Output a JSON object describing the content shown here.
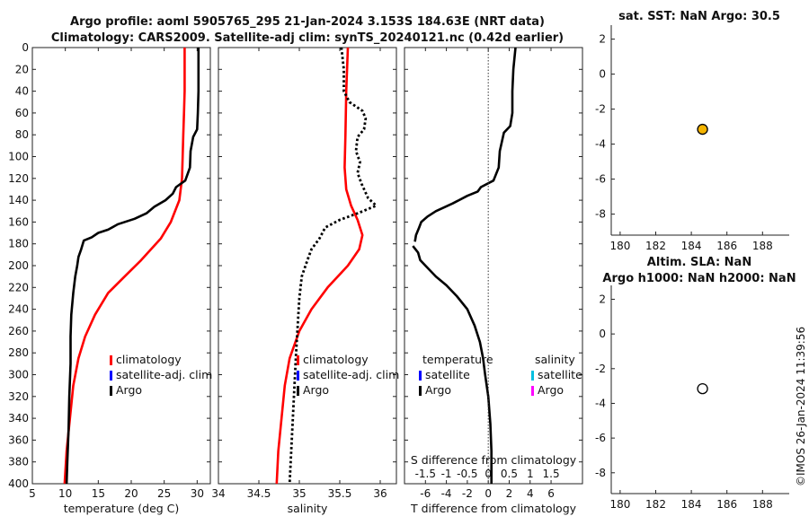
{
  "title_line1": "Argo profile: aoml 5905765_295 21-Jan-2024 3.153S 184.63E (NRT data)",
  "title_line2": "Climatology: CARS2009. Satellite-adj clim: synTS_20240121.nc (0.42d earlier)",
  "watermark": "©IMOS 26-Jan-2024 11:39:56",
  "chart_data": [
    {
      "id": "temperature",
      "type": "line",
      "xlabel": "temperature (deg C)",
      "xlim": [
        5,
        32
      ],
      "xticks": [
        5,
        10,
        15,
        20,
        25,
        30
      ],
      "ylim": [
        0,
        400
      ],
      "yticks": [
        0,
        20,
        40,
        60,
        80,
        100,
        120,
        140,
        160,
        180,
        200,
        220,
        240,
        260,
        280,
        300,
        320,
        340,
        360,
        380,
        400
      ],
      "y_reversed": true,
      "legend": [
        "climatology",
        "satellite-adj. clim",
        "Argo"
      ],
      "legend_colors": [
        "#ff0000",
        "#0000ff",
        "#000000"
      ],
      "series": [
        {
          "name": "climatology",
          "color": "#ff0000",
          "style": "solid",
          "points": [
            [
              28.1,
              0
            ],
            [
              28.1,
              20
            ],
            [
              28.1,
              40
            ],
            [
              28.0,
              60
            ],
            [
              27.9,
              80
            ],
            [
              27.8,
              100
            ],
            [
              27.7,
              120
            ],
            [
              27.3,
              140
            ],
            [
              26.0,
              160
            ],
            [
              24.5,
              175
            ],
            [
              21.5,
              195
            ],
            [
              19.0,
              210
            ],
            [
              16.5,
              225
            ],
            [
              14.5,
              245
            ],
            [
              13.0,
              265
            ],
            [
              12.0,
              285
            ],
            [
              11.2,
              310
            ],
            [
              10.7,
              340
            ],
            [
              10.2,
              370
            ],
            [
              9.9,
              400
            ]
          ]
        },
        {
          "name": "Argo",
          "color": "#000000",
          "style": "solid",
          "points": [
            [
              30.2,
              0
            ],
            [
              30.2,
              20
            ],
            [
              30.2,
              40
            ],
            [
              30.1,
              60
            ],
            [
              30.0,
              75
            ],
            [
              29.4,
              82
            ],
            [
              29.0,
              95
            ],
            [
              28.9,
              110
            ],
            [
              28.2,
              122
            ],
            [
              26.8,
              128
            ],
            [
              26.3,
              134
            ],
            [
              25.2,
              140
            ],
            [
              23.5,
              146
            ],
            [
              22.3,
              152
            ],
            [
              20.5,
              157
            ],
            [
              18.0,
              162
            ],
            [
              16.5,
              167
            ],
            [
              15.0,
              170
            ],
            [
              14.0,
              174
            ],
            [
              12.8,
              177
            ],
            [
              12.4,
              185
            ],
            [
              12.0,
              192
            ],
            [
              11.8,
              200
            ],
            [
              11.5,
              210
            ],
            [
              11.2,
              225
            ],
            [
              10.9,
              245
            ],
            [
              10.8,
              265
            ],
            [
              10.8,
              290
            ],
            [
              10.6,
              320
            ],
            [
              10.5,
              350
            ],
            [
              10.3,
              380
            ],
            [
              10.2,
              400
            ]
          ]
        }
      ]
    },
    {
      "id": "salinity",
      "type": "line",
      "xlabel": "salinity",
      "xlim": [
        34,
        36.2
      ],
      "xticks": [
        34,
        34.5,
        35,
        35.5,
        36
      ],
      "ylim": [
        0,
        400
      ],
      "y_reversed": true,
      "legend": [
        "climatology",
        "satellite-adj. clim",
        "Argo"
      ],
      "legend_colors": [
        "#ff0000",
        "#0000ff",
        "#000000"
      ],
      "series": [
        {
          "name": "climatology",
          "color": "#ff0000",
          "style": "solid",
          "points": [
            [
              35.6,
              0
            ],
            [
              35.58,
              40
            ],
            [
              35.57,
              80
            ],
            [
              35.56,
              110
            ],
            [
              35.58,
              130
            ],
            [
              35.64,
              145
            ],
            [
              35.72,
              158
            ],
            [
              35.78,
              172
            ],
            [
              35.74,
              185
            ],
            [
              35.6,
              200
            ],
            [
              35.35,
              220
            ],
            [
              35.15,
              240
            ],
            [
              35.0,
              260
            ],
            [
              34.88,
              285
            ],
            [
              34.82,
              310
            ],
            [
              34.78,
              340
            ],
            [
              34.74,
              370
            ],
            [
              34.72,
              400
            ]
          ]
        },
        {
          "name": "Argo",
          "color": "#000000",
          "style": "dotted",
          "points": [
            [
              35.52,
              0
            ],
            [
              35.55,
              20
            ],
            [
              35.55,
              40
            ],
            [
              35.62,
              50
            ],
            [
              35.78,
              58
            ],
            [
              35.82,
              65
            ],
            [
              35.8,
              75
            ],
            [
              35.72,
              82
            ],
            [
              35.7,
              95
            ],
            [
              35.75,
              105
            ],
            [
              35.72,
              115
            ],
            [
              35.77,
              125
            ],
            [
              35.85,
              138
            ],
            [
              35.95,
              145
            ],
            [
              35.72,
              152
            ],
            [
              35.5,
              158
            ],
            [
              35.32,
              165
            ],
            [
              35.25,
              175
            ],
            [
              35.15,
              185
            ],
            [
              35.1,
              195
            ],
            [
              35.03,
              210
            ],
            [
              35.0,
              230
            ],
            [
              34.98,
              255
            ],
            [
              34.96,
              280
            ],
            [
              34.94,
              310
            ],
            [
              34.92,
              340
            ],
            [
              34.9,
              370
            ],
            [
              34.88,
              400
            ]
          ]
        }
      ]
    },
    {
      "id": "difference",
      "type": "line",
      "xlabel": "T difference from climatology",
      "xlim": [
        -8,
        9
      ],
      "xticks": [
        -6,
        -4,
        -2,
        0,
        2,
        4,
        6
      ],
      "top_label": "S difference from climatology",
      "top_ticks": [
        "-1.5",
        "-1",
        "-0.5",
        "0",
        "0.5",
        "1",
        "1.5"
      ],
      "top_tick_positions": [
        -6,
        -4,
        -2,
        0,
        2,
        4,
        6
      ],
      "ylim": [
        0,
        400
      ],
      "y_reversed": true,
      "legend_temperature_title": "temperature",
      "legend_temperature": [
        "satellite",
        "Argo"
      ],
      "legend_temperature_colors": [
        "#0000ff",
        "#000000"
      ],
      "legend_salinity_title": "salinity",
      "legend_salinity": [
        "satellite",
        "Argo"
      ],
      "legend_salinity_colors": [
        "#00c0e0",
        "#ff00ff"
      ],
      "series": [
        {
          "name": "Argo T difference",
          "color": "#000000",
          "style": "solid",
          "points": [
            [
              2.6,
              0
            ],
            [
              2.4,
              20
            ],
            [
              2.3,
              40
            ],
            [
              2.3,
              60
            ],
            [
              2.1,
              72
            ],
            [
              1.5,
              78
            ],
            [
              1.1,
              95
            ],
            [
              1.0,
              110
            ],
            [
              0.5,
              122
            ],
            [
              -0.7,
              128
            ],
            [
              -1.0,
              132
            ],
            [
              -2.0,
              136
            ],
            [
              -3.4,
              143
            ],
            [
              -5.0,
              150
            ],
            [
              -5.8,
              155
            ],
            [
              -6.4,
              160
            ],
            [
              -6.6,
              165
            ],
            [
              -6.9,
              172
            ],
            [
              -7.0,
              178
            ]
          ]
        },
        {
          "name": "Argo T difference deep",
          "color": "#000000",
          "style": "solid",
          "points": [
            [
              -7.2,
              182
            ],
            [
              -6.7,
              188
            ],
            [
              -6.5,
              195
            ],
            [
              -6.0,
              200
            ],
            [
              -5.0,
              210
            ],
            [
              -4.0,
              218
            ],
            [
              -3.0,
              228
            ],
            [
              -2.0,
              240
            ],
            [
              -1.3,
              255
            ],
            [
              -0.8,
              270
            ],
            [
              -0.5,
              285
            ],
            [
              -0.3,
              300
            ],
            [
              0.0,
              320
            ],
            [
              0.2,
              345
            ],
            [
              0.3,
              370
            ],
            [
              0.3,
              400
            ]
          ]
        }
      ]
    },
    {
      "id": "sst",
      "type": "scatter",
      "title": "sat. SST: NaN Argo: 30.5",
      "xlim": [
        179.5,
        189.5
      ],
      "xticks": [
        180,
        182,
        184,
        186,
        188
      ],
      "ylim": [
        -9.2,
        2.8
      ],
      "yticks": [
        2,
        0,
        -2,
        -4,
        -6,
        -8
      ],
      "points": [
        {
          "x": 184.63,
          "y": -3.153,
          "fill": "#f4b400"
        }
      ]
    },
    {
      "id": "sla",
      "type": "scatter",
      "title_line1": "Altim. SLA: NaN",
      "title_line2": "Argo h1000: NaN h2000: NaN",
      "xlim": [
        179.5,
        189.5
      ],
      "xticks": [
        180,
        182,
        184,
        186,
        188
      ],
      "ylim": [
        -9.2,
        2.8
      ],
      "yticks": [
        2,
        0,
        -2,
        -4,
        -6,
        -8
      ],
      "points": [
        {
          "x": 184.63,
          "y": -3.153,
          "fill": "#ffffff"
        }
      ]
    }
  ]
}
